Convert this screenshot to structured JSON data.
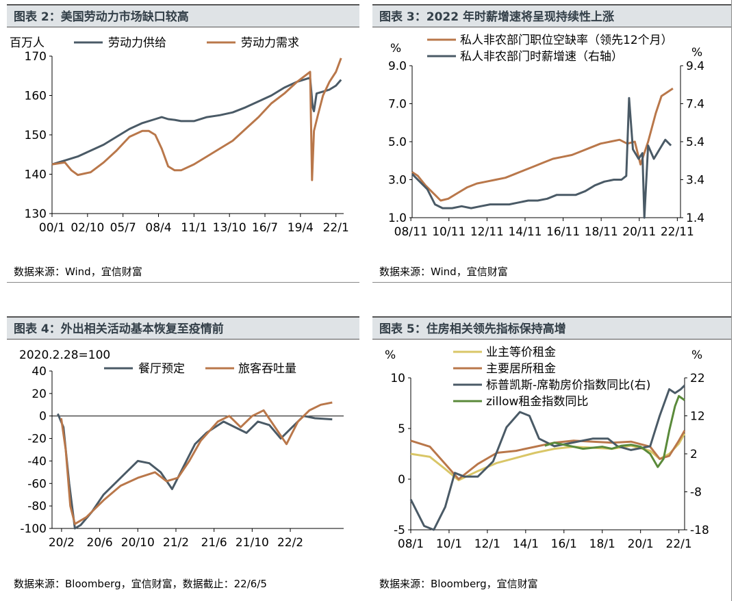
{
  "panels": [
    {
      "title": "图表 2：美国劳动力市场缺口较高",
      "source": "数据来源：Wind，宜信财富"
    },
    {
      "title": "图表 3：2022 年时薪增速将呈现持续性上涨",
      "source": "数据来源：Wind，宜信财富"
    },
    {
      "title": "图表 4：外出相关活动基本恢复至疫情前",
      "source": "数据来源：Bloomberg，宜信财富，数据截止：22/6/5"
    },
    {
      "title": "图表 5：住房相关领先指标保持高增",
      "source": "数据来源：Bloomberg，宜信财富"
    }
  ],
  "chart_data": [
    {
      "type": "line",
      "unit_label": "百万人",
      "x_ticks": [
        "00/1",
        "02/10",
        "05/7",
        "08/4",
        "11/1",
        "13/10",
        "16/7",
        "19/4",
        "22/1"
      ],
      "y_ticks": [
        130,
        140,
        150,
        160,
        170
      ],
      "ylim": [
        130,
        170
      ],
      "xlim": [
        2000.0,
        2022.6
      ],
      "legend_position": "top",
      "colors": {
        "劳动力供给": "#4a5a66",
        "劳动力需求": "#b9774a"
      },
      "series": [
        {
          "name": "劳动力供给",
          "x": [
            2000,
            2001,
            2002,
            2003,
            2004,
            2005,
            2006,
            2007,
            2008,
            2008.5,
            2009,
            2009.5,
            2010,
            2011,
            2012,
            2013,
            2014,
            2015,
            2016,
            2017,
            2018,
            2019,
            2020.0,
            2020.2,
            2020.3,
            2020.5,
            2021,
            2021.5,
            2022,
            2022.4
          ],
          "y": [
            142.5,
            143.5,
            144.5,
            146,
            147.5,
            149.5,
            151.5,
            153,
            154,
            154.5,
            154,
            153.8,
            153.5,
            153.5,
            154.5,
            155,
            155.7,
            157,
            158.5,
            160,
            162,
            163.5,
            164.5,
            157,
            156,
            160.5,
            161,
            161.5,
            162.5,
            164
          ]
        },
        {
          "name": "劳动力需求",
          "x": [
            2000,
            2001,
            2001.5,
            2002,
            2003,
            2004,
            2005,
            2006,
            2007,
            2007.5,
            2008,
            2008.5,
            2009,
            2009.5,
            2010,
            2011,
            2012,
            2013,
            2014,
            2015,
            2016,
            2017,
            2018,
            2019,
            2020.0,
            2020.15,
            2020.3,
            2020.6,
            2021,
            2021.5,
            2022,
            2022.4
          ],
          "y": [
            142.5,
            143,
            141,
            139.8,
            140.5,
            143,
            146,
            149.5,
            151,
            151,
            150,
            146.5,
            142,
            141,
            141,
            142.5,
            144.5,
            146.5,
            148.5,
            151.5,
            154.5,
            158,
            160.5,
            163.5,
            166,
            138.5,
            151,
            155,
            160,
            163.5,
            166,
            169.5
          ]
        }
      ]
    },
    {
      "type": "line",
      "left_unit": "%",
      "right_unit": "%",
      "x_ticks": [
        "08/11",
        "10/11",
        "12/11",
        "14/11",
        "16/11",
        "18/11",
        "20/11",
        "22/11"
      ],
      "y_ticks_left": [
        "1.0",
        "3.0",
        "5.0",
        "7.0",
        "9.0"
      ],
      "y_ticks_right": [
        "1.4",
        "3.4",
        "5.4",
        "7.4",
        "9.4"
      ],
      "ylim_left": [
        1.0,
        9.0
      ],
      "ylim_right": [
        1.4,
        9.4
      ],
      "xlim": [
        2008.9,
        2023.0
      ],
      "legend_position": "top",
      "colors": {
        "私人非农部门职位空缺率（领先12个月）": "#b9774a",
        "私人非农部门时薪增速（右轴）": "#4a5a66"
      },
      "series": [
        {
          "name": "私人非农部门职位空缺率（领先12个月）",
          "axis": "left",
          "x": [
            2008.9,
            2009.2,
            2009.6,
            2010.0,
            2010.4,
            2010.8,
            2011.3,
            2011.8,
            2012.3,
            2012.8,
            2013.3,
            2013.8,
            2014.3,
            2014.8,
            2015.3,
            2015.8,
            2016.3,
            2016.8,
            2017.3,
            2017.8,
            2018.3,
            2018.8,
            2019.3,
            2019.8,
            2020.2,
            2020.6,
            2020.9,
            2021.3,
            2021.7,
            2022.0,
            2022.3,
            2022.6
          ],
          "y": [
            3.4,
            3.2,
            2.7,
            2.3,
            1.9,
            2.0,
            2.3,
            2.6,
            2.8,
            2.9,
            3.0,
            3.1,
            3.3,
            3.5,
            3.7,
            3.9,
            4.1,
            4.2,
            4.3,
            4.5,
            4.7,
            4.9,
            5.0,
            5.1,
            4.9,
            5.0,
            3.8,
            5.0,
            6.5,
            7.4,
            7.6,
            7.8
          ]
        },
        {
          "name": "私人非农部门时薪增速（右轴）",
          "axis": "right",
          "x": [
            2008.9,
            2009.3,
            2009.7,
            2010.1,
            2010.5,
            2011.0,
            2011.5,
            2012.0,
            2012.5,
            2013.0,
            2013.5,
            2014.0,
            2014.5,
            2015.0,
            2015.5,
            2016.0,
            2016.5,
            2017.0,
            2017.5,
            2018.0,
            2018.5,
            2019.0,
            2019.5,
            2019.9,
            2020.15,
            2020.3,
            2020.5,
            2020.8,
            2021.0,
            2021.1,
            2021.3,
            2021.6,
            2021.9,
            2022.2,
            2022.5
          ],
          "y": [
            3.7,
            3.3,
            2.9,
            2.1,
            1.9,
            1.9,
            2.0,
            1.9,
            2.0,
            2.1,
            2.1,
            2.1,
            2.2,
            2.3,
            2.3,
            2.4,
            2.6,
            2.6,
            2.6,
            2.8,
            3.1,
            3.3,
            3.4,
            3.4,
            3.6,
            7.7,
            5.0,
            4.5,
            4.8,
            1.4,
            5.2,
            4.5,
            5.0,
            5.5,
            5.2
          ]
        }
      ]
    },
    {
      "type": "line",
      "unit_label": "2020.2.28=100",
      "x_ticks": [
        "20/2",
        "20/6",
        "20/10",
        "21/2",
        "21/6",
        "21/10",
        "22/2"
      ],
      "y_ticks": [
        -100,
        -80,
        -60,
        -40,
        -20,
        0,
        20,
        40
      ],
      "ylim": [
        -100,
        40
      ],
      "xlim": [
        2020.0,
        2022.55
      ],
      "legend_position": "top",
      "colors": {
        "餐厅预定": "#4a5a66",
        "旅客吞吐量": "#b9774a"
      },
      "series": [
        {
          "name": "餐厅预定",
          "x": [
            2020.05,
            2020.1,
            2020.15,
            2020.2,
            2020.25,
            2020.35,
            2020.45,
            2020.6,
            2020.75,
            2020.85,
            2020.95,
            2021.05,
            2021.15,
            2021.25,
            2021.35,
            2021.5,
            2021.6,
            2021.7,
            2021.8,
            2021.9,
            2022.0,
            2022.1,
            2022.2,
            2022.3,
            2022.45
          ],
          "y": [
            2,
            -10,
            -60,
            -100,
            -97,
            -85,
            -70,
            -55,
            -40,
            -42,
            -50,
            -65,
            -45,
            -25,
            -15,
            -5,
            -10,
            -15,
            -5,
            -8,
            -20,
            -10,
            0,
            -2,
            -3
          ]
        },
        {
          "name": "旅客吞吐量",
          "x": [
            2020.08,
            2020.12,
            2020.16,
            2020.2,
            2020.3,
            2020.45,
            2020.6,
            2020.75,
            2020.9,
            2021.0,
            2021.1,
            2021.2,
            2021.3,
            2021.45,
            2021.55,
            2021.65,
            2021.75,
            2021.85,
            2021.95,
            2022.05,
            2022.15,
            2022.25,
            2022.35,
            2022.45
          ],
          "y": [
            -2,
            -30,
            -80,
            -96,
            -90,
            -75,
            -62,
            -55,
            -50,
            -58,
            -55,
            -40,
            -22,
            -5,
            0,
            -10,
            0,
            5,
            -10,
            -25,
            -5,
            5,
            10,
            12
          ]
        }
      ]
    },
    {
      "type": "line",
      "left_unit": "%",
      "right_unit": "%",
      "x_ticks": [
        "08/1",
        "10/1",
        "12/1",
        "14/1",
        "16/1",
        "18/1",
        "20/1",
        "22/1"
      ],
      "y_ticks_left": [
        -5,
        0,
        5,
        10
      ],
      "y_ticks_right": [
        -18,
        -8,
        2,
        12,
        22
      ],
      "ylim_left": [
        -5,
        10
      ],
      "ylim_right": [
        -18,
        22
      ],
      "xlim": [
        2008.0,
        2022.3
      ],
      "legend_position": "top",
      "colors": {
        "业主等价租金": "#d9c667",
        "主要居所租金": "#b9774a",
        "标普凯斯-席勒房价指数同比(右)": "#4a5a66",
        "zillow租金指数同比": "#5a8a3a"
      },
      "series": [
        {
          "name": "业主等价租金",
          "axis": "left",
          "x": [
            2008.0,
            2009.0,
            2009.8,
            2010.5,
            2011.5,
            2012.5,
            2013.5,
            2014.5,
            2015.5,
            2016.5,
            2017.5,
            2018.5,
            2019.5,
            2020.5,
            2021.0,
            2021.5,
            2022.0,
            2022.3
          ],
          "y": [
            2.5,
            2.2,
            1.0,
            -0.1,
            0.8,
            1.6,
            2.1,
            2.6,
            3.0,
            3.2,
            3.1,
            3.0,
            3.3,
            2.8,
            2.0,
            2.5,
            3.5,
            4.5
          ]
        },
        {
          "name": "主要居所租金",
          "axis": "left",
          "x": [
            2008.0,
            2009.0,
            2009.8,
            2010.5,
            2011.5,
            2012.5,
            2013.5,
            2014.5,
            2015.5,
            2016.5,
            2017.5,
            2018.5,
            2019.5,
            2020.5,
            2021.0,
            2021.5,
            2022.0,
            2022.3
          ],
          "y": [
            3.8,
            3.2,
            1.5,
            0.0,
            1.5,
            2.6,
            2.8,
            3.2,
            3.6,
            3.8,
            3.7,
            3.6,
            3.7,
            3.2,
            2.0,
            2.3,
            3.8,
            4.8
          ]
        },
        {
          "name": "标普凯斯-席勒房价指数同比(右)",
          "axis": "right",
          "x": [
            2008.0,
            2008.7,
            2009.2,
            2009.8,
            2010.3,
            2010.8,
            2011.5,
            2012.3,
            2013.0,
            2013.7,
            2014.2,
            2014.7,
            2015.5,
            2016.5,
            2017.5,
            2018.3,
            2018.8,
            2019.5,
            2020.0,
            2020.5,
            2021.0,
            2021.5,
            2021.8,
            2022.1,
            2022.3
          ],
          "y": [
            -10,
            -17,
            -18,
            -12,
            -3,
            -4,
            -4,
            0,
            9,
            13,
            12,
            6,
            4,
            5,
            6,
            6,
            4,
            3,
            3.5,
            4,
            12,
            19,
            18,
            19,
            20
          ]
        },
        {
          "name": "zillow租金指数同比",
          "axis": "left",
          "x": [
            2015.0,
            2015.5,
            2016.0,
            2016.5,
            2017.0,
            2017.5,
            2018.0,
            2018.5,
            2019.0,
            2019.5,
            2020.0,
            2020.5,
            2020.9,
            2021.2,
            2021.5,
            2021.8,
            2022.0,
            2022.3
          ],
          "y": [
            3.3,
            3.6,
            3.4,
            3.2,
            3.0,
            3.1,
            3.2,
            3.0,
            3.3,
            3.4,
            3.2,
            2.5,
            1.2,
            2.0,
            4.8,
            7.2,
            8.2,
            7.8
          ]
        }
      ]
    }
  ]
}
